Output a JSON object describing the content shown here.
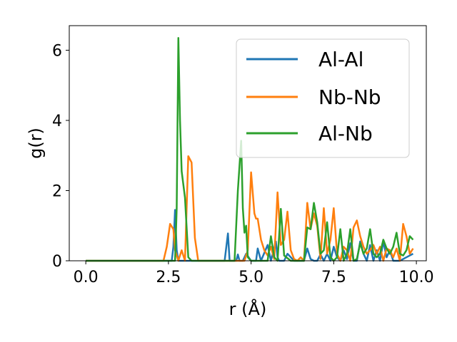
{
  "chart_data": {
    "type": "line",
    "xlabel": "r (Å)",
    "ylabel": "g(r)",
    "xlim": [
      -0.5,
      10.3
    ],
    "ylim": [
      0,
      6.7
    ],
    "xticks": [
      0.0,
      2.5,
      5.0,
      7.5,
      10.0
    ],
    "xtick_labels": [
      "0.0",
      "2.5",
      "5.0",
      "7.5",
      "10.0"
    ],
    "yticks": [
      0,
      2,
      4,
      6
    ],
    "ytick_labels": [
      "0",
      "2",
      "4",
      "6"
    ],
    "grid": false,
    "legend_position": "top-right",
    "series": [
      {
        "name": "Al-Al",
        "color": "#1f77b4",
        "x": [
          0.0,
          2.6,
          2.65,
          2.7,
          2.75,
          2.8,
          2.85,
          4.2,
          4.3,
          4.35,
          4.4,
          4.55,
          4.6,
          4.65,
          4.75,
          4.85,
          5.0,
          5.15,
          5.2,
          5.3,
          5.5,
          5.6,
          5.75,
          5.8,
          5.85,
          6.0,
          6.1,
          6.3,
          6.6,
          6.7,
          6.8,
          6.9,
          7.0,
          7.1,
          7.2,
          7.3,
          7.4,
          7.5,
          7.6,
          7.7,
          7.8,
          7.9,
          8.0,
          8.1,
          8.2,
          8.3,
          8.4,
          8.5,
          8.6,
          8.7,
          8.8,
          8.9,
          9.0,
          9.1,
          9.2,
          9.3,
          9.5,
          9.7,
          9.9
        ],
        "y": [
          0.0,
          0.0,
          0.4,
          1.45,
          0.3,
          0.0,
          0.0,
          0.0,
          0.78,
          0.0,
          0.0,
          0.0,
          0.18,
          0.0,
          0.0,
          0.2,
          0.0,
          0.0,
          0.35,
          0.0,
          0.45,
          0.0,
          0.55,
          0.1,
          0.0,
          0.0,
          0.2,
          0.0,
          0.0,
          0.35,
          0.05,
          0.0,
          0.0,
          0.18,
          0.0,
          0.2,
          0.0,
          0.4,
          0.1,
          0.0,
          0.3,
          0.05,
          0.5,
          0.0,
          0.0,
          0.55,
          0.2,
          0.0,
          0.45,
          0.0,
          0.3,
          0.0,
          0.55,
          0.1,
          0.3,
          0.0,
          0.0,
          0.1,
          0.2
        ]
      },
      {
        "name": "Nb-Nb",
        "color": "#ff7f0e",
        "x": [
          0.0,
          2.35,
          2.45,
          2.55,
          2.65,
          2.7,
          2.8,
          2.9,
          3.0,
          3.1,
          3.2,
          3.3,
          3.4,
          3.5,
          4.2,
          4.8,
          4.9,
          5.0,
          5.1,
          5.15,
          5.2,
          5.3,
          5.4,
          5.5,
          5.6,
          5.7,
          5.8,
          5.9,
          6.0,
          6.1,
          6.2,
          6.3,
          6.4,
          6.5,
          6.6,
          6.7,
          6.8,
          6.9,
          7.0,
          7.1,
          7.2,
          7.3,
          7.4,
          7.5,
          7.6,
          7.7,
          7.8,
          7.9,
          8.0,
          8.1,
          8.2,
          8.3,
          8.4,
          8.5,
          8.6,
          8.7,
          8.8,
          8.9,
          9.0,
          9.1,
          9.2,
          9.3,
          9.4,
          9.5,
          9.6,
          9.7,
          9.8,
          9.9
        ],
        "y": [
          0.0,
          0.0,
          0.4,
          1.05,
          0.9,
          0.3,
          0.0,
          0.3,
          0.0,
          2.98,
          2.8,
          0.65,
          0.0,
          0.0,
          0.0,
          0.0,
          0.3,
          2.52,
          1.35,
          1.2,
          1.2,
          0.6,
          0.3,
          0.15,
          0.4,
          0.05,
          1.95,
          0.45,
          0.6,
          1.4,
          0.3,
          0.05,
          0.0,
          0.1,
          0.0,
          1.65,
          0.9,
          1.35,
          1.0,
          0.05,
          1.5,
          0.2,
          0.6,
          1.5,
          0.2,
          0.0,
          0.4,
          0.3,
          0.0,
          0.95,
          1.15,
          0.7,
          0.4,
          0.2,
          0.3,
          0.45,
          0.2,
          0.4,
          0.0,
          0.35,
          0.3,
          0.1,
          0.35,
          0.0,
          1.05,
          0.7,
          0.2,
          0.35
        ]
      },
      {
        "name": "Al-Nb",
        "color": "#2ca02c",
        "x": [
          0.0,
          2.6,
          2.7,
          2.75,
          2.8,
          2.85,
          2.9,
          3.0,
          3.1,
          3.2,
          3.3,
          4.4,
          4.5,
          4.6,
          4.7,
          4.75,
          4.8,
          4.85,
          4.9,
          5.0,
          5.2,
          5.4,
          5.5,
          5.6,
          5.7,
          5.8,
          5.9,
          6.0,
          6.2,
          6.5,
          6.6,
          6.7,
          6.8,
          6.9,
          7.0,
          7.1,
          7.2,
          7.3,
          7.4,
          7.5,
          7.6,
          7.7,
          7.8,
          7.9,
          8.0,
          8.1,
          8.2,
          8.3,
          8.4,
          8.5,
          8.6,
          8.7,
          8.8,
          8.9,
          9.0,
          9.1,
          9.2,
          9.3,
          9.4,
          9.5,
          9.6,
          9.7,
          9.8,
          9.9
        ],
        "y": [
          0.0,
          0.0,
          0.0,
          1.5,
          6.35,
          4.0,
          2.55,
          1.8,
          0.1,
          0.0,
          0.0,
          0.0,
          0.0,
          2.0,
          3.42,
          1.5,
          0.8,
          1.0,
          0.1,
          0.0,
          0.0,
          0.0,
          0.0,
          0.7,
          0.1,
          0.0,
          1.48,
          0.15,
          0.0,
          0.0,
          0.0,
          0.95,
          0.9,
          1.65,
          1.1,
          0.2,
          0.3,
          1.1,
          0.1,
          0.0,
          0.1,
          0.9,
          0.0,
          0.2,
          0.9,
          0.0,
          0.05,
          0.5,
          0.2,
          0.35,
          0.9,
          0.2,
          0.1,
          0.2,
          0.6,
          0.35,
          0.2,
          0.4,
          0.8,
          0.2,
          0.15,
          0.3,
          0.7,
          0.6
        ]
      }
    ]
  }
}
